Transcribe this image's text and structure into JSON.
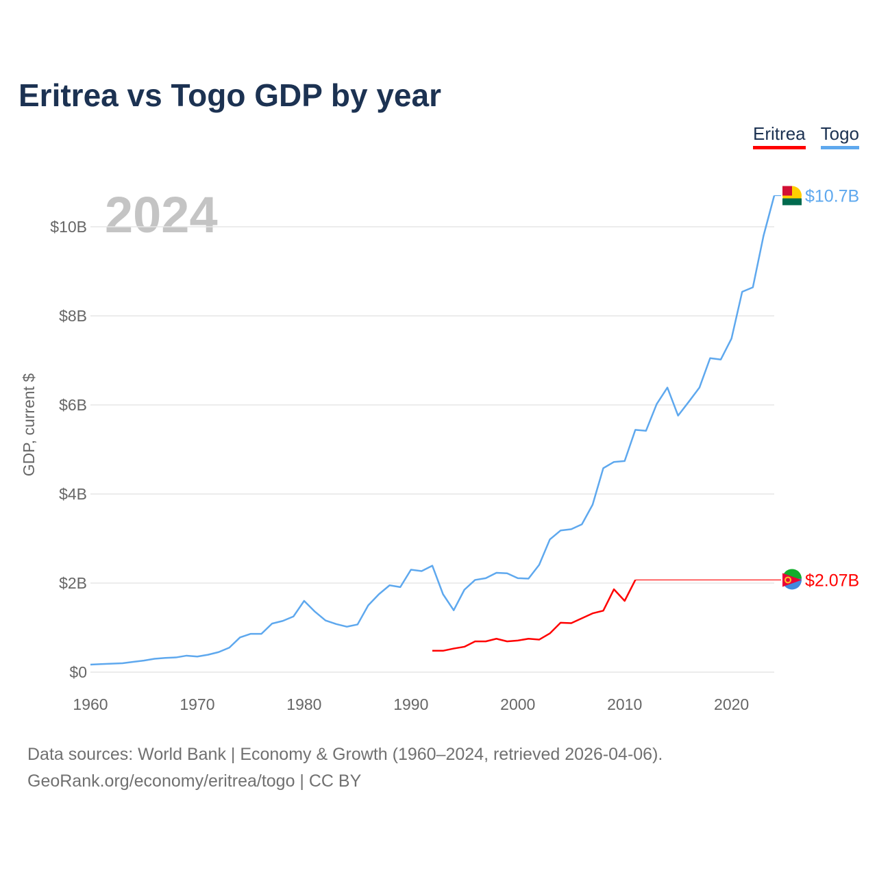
{
  "chart_data": {
    "type": "line",
    "title": "Eritrea vs Togo GDP by year",
    "ylabel": "GDP, current $",
    "xlabel": "",
    "year_watermark": "2024",
    "xlim": [
      1960,
      2024
    ],
    "ylim": [
      0,
      11
    ],
    "x_ticks": [
      "1960",
      "1970",
      "1980",
      "1990",
      "2000",
      "2010",
      "2020"
    ],
    "y_ticks": [
      {
        "v": 0,
        "label": "$0"
      },
      {
        "v": 2,
        "label": "$2B"
      },
      {
        "v": 4,
        "label": "$4B"
      },
      {
        "v": 6,
        "label": "$6B"
      },
      {
        "v": 8,
        "label": "$8B"
      },
      {
        "v": 10,
        "label": "$10B"
      }
    ],
    "legend_position": "top-right",
    "series": [
      {
        "name": "Eritrea",
        "color": "#ff0000",
        "end_label": "$2.07B",
        "start_year": 1992,
        "carried_to": 2024,
        "values": [
          0.48,
          0.48,
          0.53,
          0.57,
          0.69,
          0.69,
          0.75,
          0.69,
          0.71,
          0.75,
          0.73,
          0.87,
          1.11,
          1.1,
          1.21,
          1.32,
          1.38,
          1.86,
          1.6,
          2.07
        ]
      },
      {
        "name": "Togo",
        "color": "#5ea8ee",
        "end_label": "$10.7B",
        "start_year": 1960,
        "carried_to": 2024,
        "values": [
          0.17,
          0.18,
          0.19,
          0.2,
          0.23,
          0.26,
          0.3,
          0.32,
          0.33,
          0.37,
          0.35,
          0.39,
          0.45,
          0.55,
          0.78,
          0.86,
          0.86,
          1.09,
          1.15,
          1.25,
          1.6,
          1.36,
          1.16,
          1.08,
          1.02,
          1.07,
          1.5,
          1.75,
          1.95,
          1.91,
          2.3,
          2.27,
          2.39,
          1.75,
          1.39,
          1.85,
          2.07,
          2.11,
          2.23,
          2.22,
          2.11,
          2.1,
          2.41,
          2.98,
          3.18,
          3.21,
          3.32,
          3.76,
          4.58,
          4.72,
          4.74,
          5.44,
          5.42,
          6.02,
          6.39,
          5.76,
          6.07,
          6.39,
          7.05,
          7.02,
          7.49,
          8.54,
          8.64,
          9.8,
          10.7
        ]
      }
    ]
  },
  "footer": {
    "line1": "Data sources: World Bank | Economy & Growth (1960–2024, retrieved 2026-04-06).",
    "line2": "GeoRank.org/economy/eritrea/togo | CC BY"
  }
}
